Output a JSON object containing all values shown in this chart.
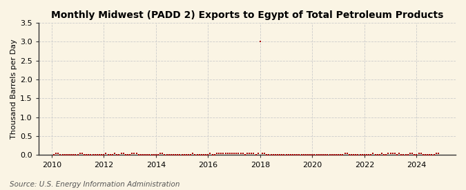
{
  "title": "Monthly Midwest (PADD 2) Exports to Egypt of Total Petroleum Products",
  "ylabel": "Thousand Barrels per Day",
  "source": "Source: U.S. Energy Information Administration",
  "xlim": [
    2009.5,
    2025.5
  ],
  "ylim": [
    0,
    3.5
  ],
  "yticks": [
    0.0,
    0.5,
    1.0,
    1.5,
    2.0,
    2.5,
    3.0,
    3.5
  ],
  "xticks": [
    2010,
    2012,
    2014,
    2016,
    2018,
    2020,
    2022,
    2024
  ],
  "background_color": "#faf4e4",
  "plot_bg_color": "#faf4e4",
  "marker_color": "#aa0000",
  "grid_color": "#cccccc",
  "title_fontsize": 10,
  "label_fontsize": 8,
  "tick_fontsize": 8,
  "source_fontsize": 7.5,
  "data_points": [
    [
      2010.083,
      0.0
    ],
    [
      2010.167,
      0.05
    ],
    [
      2010.25,
      0.05
    ],
    [
      2010.333,
      0.0
    ],
    [
      2010.417,
      0.0
    ],
    [
      2010.5,
      0.0
    ],
    [
      2010.583,
      0.0
    ],
    [
      2010.667,
      0.0
    ],
    [
      2010.75,
      0.0
    ],
    [
      2010.833,
      0.0
    ],
    [
      2010.917,
      0.0
    ],
    [
      2011.0,
      0.0
    ],
    [
      2011.083,
      0.05
    ],
    [
      2011.167,
      0.05
    ],
    [
      2011.25,
      0.0
    ],
    [
      2011.333,
      0.0
    ],
    [
      2011.417,
      0.0
    ],
    [
      2011.5,
      0.0
    ],
    [
      2011.583,
      0.0
    ],
    [
      2011.667,
      0.0
    ],
    [
      2011.75,
      0.0
    ],
    [
      2011.833,
      0.0
    ],
    [
      2011.917,
      0.0
    ],
    [
      2012.0,
      0.0
    ],
    [
      2012.083,
      0.05
    ],
    [
      2012.167,
      0.0
    ],
    [
      2012.25,
      0.0
    ],
    [
      2012.333,
      0.0
    ],
    [
      2012.417,
      0.05
    ],
    [
      2012.5,
      0.0
    ],
    [
      2012.583,
      0.0
    ],
    [
      2012.667,
      0.05
    ],
    [
      2012.75,
      0.05
    ],
    [
      2012.833,
      0.0
    ],
    [
      2012.917,
      0.0
    ],
    [
      2013.0,
      0.0
    ],
    [
      2013.083,
      0.05
    ],
    [
      2013.167,
      0.05
    ],
    [
      2013.25,
      0.05
    ],
    [
      2013.333,
      0.0
    ],
    [
      2013.417,
      0.0
    ],
    [
      2013.5,
      0.0
    ],
    [
      2013.583,
      0.0
    ],
    [
      2013.667,
      0.0
    ],
    [
      2013.75,
      0.0
    ],
    [
      2013.833,
      0.0
    ],
    [
      2013.917,
      0.0
    ],
    [
      2014.0,
      0.0
    ],
    [
      2014.083,
      0.0
    ],
    [
      2014.167,
      0.05
    ],
    [
      2014.25,
      0.05
    ],
    [
      2014.333,
      0.0
    ],
    [
      2014.417,
      0.0
    ],
    [
      2014.5,
      0.0
    ],
    [
      2014.583,
      0.0
    ],
    [
      2014.667,
      0.0
    ],
    [
      2014.75,
      0.0
    ],
    [
      2014.833,
      0.0
    ],
    [
      2014.917,
      0.0
    ],
    [
      2015.0,
      0.0
    ],
    [
      2015.083,
      0.0
    ],
    [
      2015.167,
      0.0
    ],
    [
      2015.25,
      0.0
    ],
    [
      2015.333,
      0.0
    ],
    [
      2015.417,
      0.05
    ],
    [
      2015.5,
      0.0
    ],
    [
      2015.583,
      0.0
    ],
    [
      2015.667,
      0.0
    ],
    [
      2015.75,
      0.0
    ],
    [
      2015.833,
      0.0
    ],
    [
      2015.917,
      0.0
    ],
    [
      2016.0,
      0.0
    ],
    [
      2016.083,
      0.05
    ],
    [
      2016.167,
      0.0
    ],
    [
      2016.25,
      0.0
    ],
    [
      2016.333,
      0.05
    ],
    [
      2016.417,
      0.05
    ],
    [
      2016.5,
      0.05
    ],
    [
      2016.583,
      0.05
    ],
    [
      2016.667,
      0.05
    ],
    [
      2016.75,
      0.05
    ],
    [
      2016.833,
      0.05
    ],
    [
      2016.917,
      0.05
    ],
    [
      2017.0,
      0.05
    ],
    [
      2017.083,
      0.05
    ],
    [
      2017.167,
      0.05
    ],
    [
      2017.25,
      0.05
    ],
    [
      2017.333,
      0.05
    ],
    [
      2017.417,
      0.0
    ],
    [
      2017.5,
      0.05
    ],
    [
      2017.583,
      0.05
    ],
    [
      2017.667,
      0.05
    ],
    [
      2017.75,
      0.05
    ],
    [
      2017.833,
      0.0
    ],
    [
      2017.917,
      0.05
    ],
    [
      2018.0,
      3.0
    ],
    [
      2018.083,
      0.05
    ],
    [
      2018.167,
      0.05
    ],
    [
      2018.25,
      0.0
    ],
    [
      2018.333,
      0.0
    ],
    [
      2018.417,
      0.0
    ],
    [
      2018.5,
      0.0
    ],
    [
      2018.583,
      0.0
    ],
    [
      2018.667,
      0.0
    ],
    [
      2018.75,
      0.0
    ],
    [
      2018.833,
      0.0
    ],
    [
      2018.917,
      0.0
    ],
    [
      2019.0,
      0.0
    ],
    [
      2019.083,
      0.0
    ],
    [
      2019.167,
      0.0
    ],
    [
      2019.25,
      0.0
    ],
    [
      2019.333,
      0.0
    ],
    [
      2019.417,
      0.0
    ],
    [
      2019.5,
      0.0
    ],
    [
      2019.583,
      0.0
    ],
    [
      2019.667,
      0.0
    ],
    [
      2019.75,
      0.0
    ],
    [
      2019.833,
      0.0
    ],
    [
      2019.917,
      0.0
    ],
    [
      2020.0,
      0.0
    ],
    [
      2020.083,
      0.0
    ],
    [
      2020.167,
      0.0
    ],
    [
      2020.25,
      0.0
    ],
    [
      2020.333,
      0.0
    ],
    [
      2020.417,
      0.0
    ],
    [
      2020.5,
      0.0
    ],
    [
      2020.583,
      0.0
    ],
    [
      2020.667,
      0.0
    ],
    [
      2020.75,
      0.0
    ],
    [
      2020.833,
      0.0
    ],
    [
      2020.917,
      0.0
    ],
    [
      2021.0,
      0.0
    ],
    [
      2021.083,
      0.0
    ],
    [
      2021.167,
      0.0
    ],
    [
      2021.25,
      0.05
    ],
    [
      2021.333,
      0.05
    ],
    [
      2021.417,
      0.0
    ],
    [
      2021.5,
      0.0
    ],
    [
      2021.583,
      0.0
    ],
    [
      2021.667,
      0.0
    ],
    [
      2021.75,
      0.0
    ],
    [
      2021.833,
      0.0
    ],
    [
      2021.917,
      0.0
    ],
    [
      2022.0,
      0.0
    ],
    [
      2022.083,
      0.0
    ],
    [
      2022.167,
      0.0
    ],
    [
      2022.25,
      0.0
    ],
    [
      2022.333,
      0.05
    ],
    [
      2022.417,
      0.0
    ],
    [
      2022.5,
      0.0
    ],
    [
      2022.583,
      0.0
    ],
    [
      2022.667,
      0.05
    ],
    [
      2022.75,
      0.0
    ],
    [
      2022.833,
      0.0
    ],
    [
      2022.917,
      0.05
    ],
    [
      2023.0,
      0.05
    ],
    [
      2023.083,
      0.05
    ],
    [
      2023.167,
      0.05
    ],
    [
      2023.25,
      0.0
    ],
    [
      2023.333,
      0.05
    ],
    [
      2023.417,
      0.0
    ],
    [
      2023.5,
      0.0
    ],
    [
      2023.583,
      0.0
    ],
    [
      2023.667,
      0.0
    ],
    [
      2023.75,
      0.05
    ],
    [
      2023.833,
      0.05
    ],
    [
      2023.917,
      0.0
    ],
    [
      2024.0,
      0.0
    ],
    [
      2024.083,
      0.05
    ],
    [
      2024.167,
      0.05
    ],
    [
      2024.25,
      0.0
    ],
    [
      2024.333,
      0.0
    ],
    [
      2024.417,
      0.0
    ],
    [
      2024.5,
      0.0
    ],
    [
      2024.583,
      0.0
    ],
    [
      2024.667,
      0.0
    ],
    [
      2024.75,
      0.05
    ],
    [
      2024.833,
      0.05
    ]
  ]
}
